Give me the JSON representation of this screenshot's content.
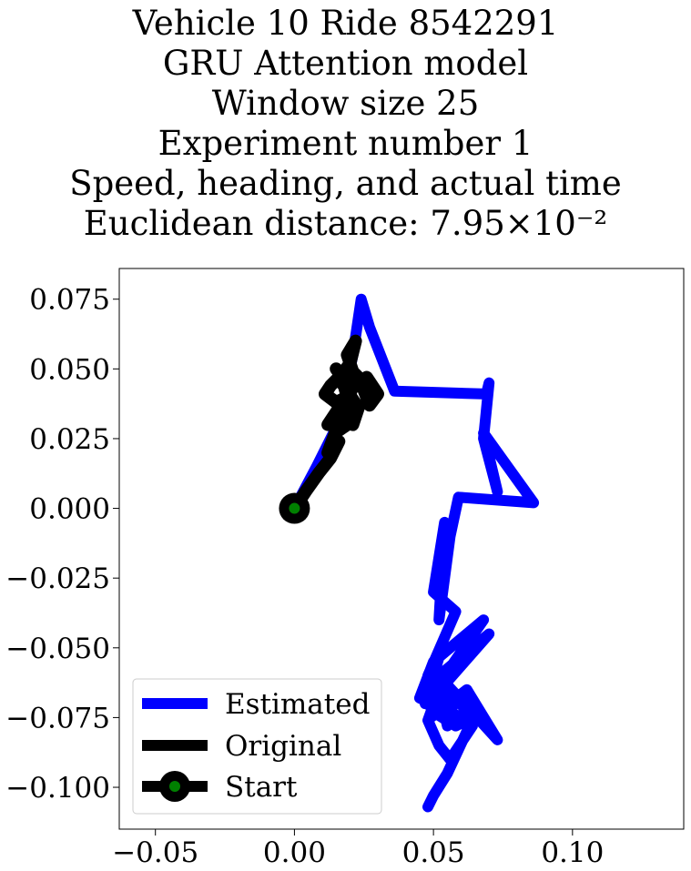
{
  "title_lines": [
    "Vehicle 10 Ride 8542291",
    "GRU Attention model",
    "Window size 25",
    "Experiment number 1",
    "Speed, heading, and actual time",
    "Euclidean distance: 7.95×10⁻²"
  ],
  "chart_data": {
    "type": "line",
    "xlim": [
      -0.063,
      0.14
    ],
    "ylim": [
      -0.115,
      0.086
    ],
    "x_ticks": [
      -0.05,
      0.0,
      0.05,
      0.1
    ],
    "x_tick_labels": [
      "−0.05",
      "0.00",
      "0.05",
      "0.10"
    ],
    "y_ticks": [
      0.075,
      0.05,
      0.025,
      0.0,
      -0.025,
      -0.05,
      -0.075,
      -0.1
    ],
    "y_tick_labels": [
      "0.075",
      "0.050",
      "0.025",
      "0.000",
      "−0.025",
      "−0.050",
      "−0.075",
      "−0.100"
    ],
    "grid": false,
    "legend_position": "lower-left",
    "series": [
      {
        "name": "Estimated",
        "color": "#0000ff",
        "x": [
          0.0,
          0.008,
          0.014,
          0.018,
          0.021,
          0.024,
          0.027,
          0.036,
          0.069,
          0.07,
          0.068,
          0.073,
          0.068,
          0.086,
          0.059,
          0.056,
          0.052,
          0.054,
          0.05,
          0.058,
          0.048,
          0.053,
          0.047,
          0.068,
          0.05,
          0.045,
          0.06,
          0.048,
          0.07,
          0.052,
          0.049,
          0.062,
          0.073,
          0.063,
          0.05,
          0.058,
          0.055,
          0.052,
          0.06,
          0.064,
          0.056,
          0.052,
          0.048,
          0.053,
          0.047,
          0.05,
          0.058,
          0.064,
          0.062,
          0.055,
          0.05,
          0.048
        ],
        "y": [
          0.0,
          0.015,
          0.027,
          0.04,
          0.055,
          0.075,
          0.065,
          0.042,
          0.041,
          0.045,
          0.025,
          0.006,
          0.027,
          0.002,
          0.004,
          -0.01,
          -0.04,
          -0.005,
          -0.03,
          -0.037,
          -0.06,
          -0.05,
          -0.07,
          -0.04,
          -0.055,
          -0.068,
          -0.075,
          -0.07,
          -0.045,
          -0.06,
          -0.075,
          -0.065,
          -0.083,
          -0.072,
          -0.058,
          -0.067,
          -0.078,
          -0.065,
          -0.07,
          -0.078,
          -0.09,
          -0.085,
          -0.076,
          -0.062,
          -0.068,
          -0.073,
          -0.078,
          -0.075,
          -0.08,
          -0.095,
          -0.103,
          -0.107
        ]
      },
      {
        "name": "Original",
        "color": "#000000",
        "x": [
          0.0,
          0.004,
          0.009,
          0.013,
          0.016,
          0.012,
          0.015,
          0.019,
          0.016,
          0.012,
          0.018,
          0.022,
          0.02,
          0.024,
          0.028,
          0.026,
          0.03,
          0.027,
          0.024,
          0.021,
          0.019,
          0.022,
          0.02,
          0.017,
          0.013,
          0.011,
          0.015,
          0.019,
          0.017,
          0.02,
          0.018,
          0.021,
          0.023,
          0.019,
          0.017,
          0.015,
          0.02,
          0.018,
          0.014,
          0.016,
          0.019,
          0.022,
          0.02,
          0.017
        ],
        "y": [
          0.0,
          0.006,
          0.013,
          0.018,
          0.024,
          0.02,
          0.028,
          0.032,
          0.036,
          0.03,
          0.038,
          0.045,
          0.05,
          0.046,
          0.042,
          0.047,
          0.041,
          0.037,
          0.045,
          0.049,
          0.055,
          0.06,
          0.052,
          0.048,
          0.044,
          0.041,
          0.038,
          0.04,
          0.047,
          0.052,
          0.034,
          0.03,
          0.036,
          0.042,
          0.048,
          0.05,
          0.043,
          0.037,
          0.033,
          0.028,
          0.03,
          0.036,
          0.041,
          0.045
        ]
      }
    ],
    "start_point": {
      "name": "Start",
      "x": 0.0,
      "y": 0.0,
      "color": "#008000"
    }
  },
  "legend": {
    "items": [
      {
        "label": "Estimated",
        "color": "#0000ff",
        "kind": "line"
      },
      {
        "label": "Original",
        "color": "#000000",
        "kind": "line"
      },
      {
        "label": "Start",
        "color": "#000000",
        "marker_color": "#008000",
        "kind": "marker"
      }
    ]
  }
}
